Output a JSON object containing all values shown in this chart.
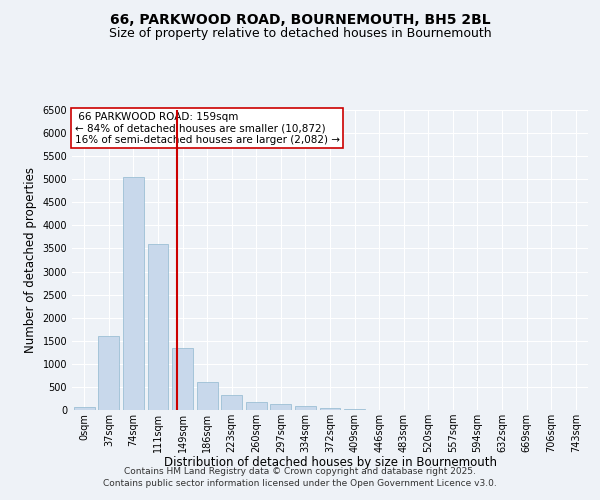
{
  "title_line1": "66, PARKWOOD ROAD, BOURNEMOUTH, BH5 2BL",
  "title_line2": "Size of property relative to detached houses in Bournemouth",
  "xlabel": "Distribution of detached houses by size in Bournemouth",
  "ylabel": "Number of detached properties",
  "bar_color": "#c8d8eb",
  "bar_edgecolor": "#90b8d0",
  "categories": [
    "0sqm",
    "37sqm",
    "74sqm",
    "111sqm",
    "149sqm",
    "186sqm",
    "223sqm",
    "260sqm",
    "297sqm",
    "334sqm",
    "372sqm",
    "409sqm",
    "446sqm",
    "483sqm",
    "520sqm",
    "557sqm",
    "594sqm",
    "632sqm",
    "669sqm",
    "706sqm",
    "743sqm"
  ],
  "values": [
    70,
    1600,
    5050,
    3600,
    1350,
    600,
    330,
    170,
    130,
    90,
    50,
    20,
    10,
    5,
    3,
    2,
    1,
    1,
    0,
    0,
    0
  ],
  "ylim": [
    0,
    6500
  ],
  "yticks": [
    0,
    500,
    1000,
    1500,
    2000,
    2500,
    3000,
    3500,
    4000,
    4500,
    5000,
    5500,
    6000,
    6500
  ],
  "property_size": 159,
  "property_size_label": "66 PARKWOOD ROAD: 159sqm",
  "pct_smaller": 84,
  "pct_smaller_count": 10872,
  "pct_larger": 16,
  "pct_larger_count": 2082,
  "annotation_box_color": "#ffffff",
  "annotation_box_edgecolor": "#cc0000",
  "vline_color": "#cc0000",
  "footer_line1": "Contains HM Land Registry data © Crown copyright and database right 2025.",
  "footer_line2": "Contains public sector information licensed under the Open Government Licence v3.0.",
  "background_color": "#eef2f7",
  "grid_color": "#ffffff",
  "title_fontsize": 10,
  "subtitle_fontsize": 9,
  "axis_label_fontsize": 8.5,
  "tick_fontsize": 7,
  "annotation_fontsize": 7.5,
  "footer_fontsize": 6.5
}
